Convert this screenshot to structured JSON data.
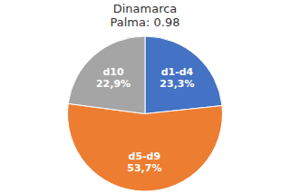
{
  "chart_data": {
    "type": "pie",
    "title": "Dinamarca\nPalma: 0.98",
    "categories": [
      "d1-d4",
      "d5-d9",
      "d10"
    ],
    "values": [
      23.3,
      53.7,
      22.9
    ],
    "value_labels": [
      "23,3%",
      "53,7%",
      "22,9%"
    ],
    "colors": [
      "#4472C4",
      "#ED7D31",
      "#A5A5A5"
    ],
    "data_labels": true
  }
}
